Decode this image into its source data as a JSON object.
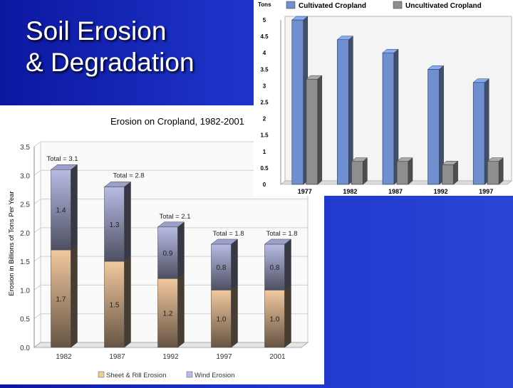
{
  "slide": {
    "title_line1": "Soil Erosion",
    "title_line2": "& Degradation"
  },
  "chart_data": [
    {
      "type": "bar",
      "stacked": true,
      "title": "Erosion on Cropland, 1982-2001",
      "ylabel": "Erosion in Billions of Tons Per Year",
      "xlabel": "",
      "ylim": [
        0,
        3.5
      ],
      "yticks": [
        "0.0",
        "0.5",
        "1.0",
        "1.5",
        "2.0",
        "2.5",
        "3.0",
        "3.5"
      ],
      "categories": [
        "1982",
        "1987",
        "1992",
        "1997",
        "2001"
      ],
      "series": [
        {
          "name": "Sheet & Rill Erosion",
          "values": [
            1.7,
            1.5,
            1.2,
            1.0,
            1.0
          ],
          "labels": [
            "1.7",
            "1.5",
            "1.2",
            "1.0",
            "1.0"
          ],
          "color": "#f2c9a0"
        },
        {
          "name": "Wind Erosion",
          "values": [
            1.4,
            1.3,
            0.9,
            0.8,
            0.8
          ],
          "labels": [
            "1.4",
            "1.3",
            "0.9",
            "0.8",
            "0.8"
          ],
          "color": "#b8bce6"
        }
      ],
      "totals": [
        "Total = 3.1",
        "Total = 2.8",
        "Total = 2.1",
        "Total = 1.8",
        "Total = 1.8"
      ],
      "legend_position": "bottom",
      "grid": true
    },
    {
      "type": "bar",
      "ylabel": "Tons",
      "ylim": [
        0,
        5
      ],
      "yticks": [
        "0",
        "0.5",
        "1",
        "1.5",
        "2",
        "2.5",
        "3",
        "3.5",
        "4",
        "4.5",
        "5"
      ],
      "categories": [
        "1977",
        "1982",
        "1987",
        "1992",
        "1997"
      ],
      "series": [
        {
          "name": "Cultivated Cropland",
          "values": [
            5.0,
            4.4,
            4.0,
            3.5,
            3.1
          ],
          "color": "#6f8fd0"
        },
        {
          "name": "Uncultivated Cropland",
          "values": [
            3.2,
            0.7,
            0.7,
            0.6,
            0.7
          ],
          "color": "#8e8e8e"
        }
      ],
      "legend_position": "top",
      "grid": false
    }
  ]
}
